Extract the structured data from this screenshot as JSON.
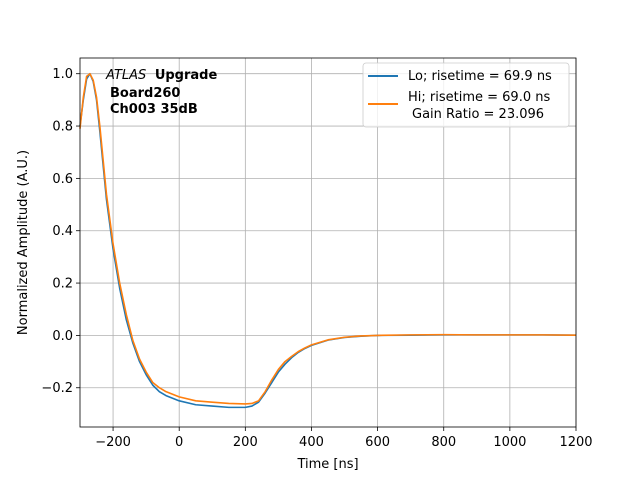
{
  "chart_data": {
    "type": "line",
    "xlabel": "Time [ns]",
    "ylabel": "Normalized Amplitude (A.U.)",
    "xlim": [
      -300,
      1200
    ],
    "ylim": [
      -0.35,
      1.06
    ],
    "xticks": [
      -200,
      0,
      200,
      400,
      600,
      800,
      1000,
      1200
    ],
    "xtick_labels": [
      "−200",
      "0",
      "200",
      "400",
      "600",
      "800",
      "1000",
      "1200"
    ],
    "yticks": [
      -0.2,
      0.0,
      0.2,
      0.4,
      0.6,
      0.8,
      1.0
    ],
    "ytick_labels": [
      "−0.2",
      "0.0",
      "0.2",
      "0.4",
      "0.6",
      "0.8",
      "1.0"
    ],
    "grid": true,
    "legend_position": "top-right",
    "annotation": {
      "experiment": "ATLAS",
      "tag": "Upgrade",
      "line2": "Board260",
      "line3": "Ch003 35dB"
    },
    "series": [
      {
        "name": "Lo; risetime = 69.9 ns",
        "color": "#1f77b4",
        "x": [
          -300,
          -290,
          -280,
          -270,
          -260,
          -250,
          -240,
          -230,
          -220,
          -200,
          -180,
          -160,
          -140,
          -120,
          -100,
          -80,
          -60,
          -40,
          -20,
          0,
          50,
          100,
          150,
          200,
          220,
          240,
          260,
          280,
          300,
          320,
          340,
          360,
          380,
          400,
          450,
          500,
          550,
          600,
          700,
          800,
          900,
          1000,
          1100,
          1200
        ],
        "y": [
          0.8,
          0.9,
          0.98,
          1.0,
          0.97,
          0.9,
          0.78,
          0.65,
          0.52,
          0.33,
          0.18,
          0.06,
          -0.03,
          -0.1,
          -0.15,
          -0.19,
          -0.215,
          -0.23,
          -0.24,
          -0.25,
          -0.265,
          -0.27,
          -0.275,
          -0.275,
          -0.27,
          -0.255,
          -0.22,
          -0.18,
          -0.14,
          -0.11,
          -0.085,
          -0.065,
          -0.05,
          -0.038,
          -0.018,
          -0.008,
          -0.003,
          0.0,
          0.001,
          0.002,
          0.002,
          0.002,
          0.002,
          0.001
        ]
      },
      {
        "name": "Hi; risetime = 69.0 ns",
        "name_line2": "Gain Ratio = 23.096",
        "color": "#ff7f0e",
        "x": [
          -300,
          -290,
          -280,
          -270,
          -260,
          -250,
          -240,
          -230,
          -220,
          -200,
          -180,
          -160,
          -140,
          -120,
          -100,
          -80,
          -60,
          -40,
          -20,
          0,
          50,
          100,
          150,
          200,
          220,
          240,
          260,
          280,
          300,
          320,
          340,
          360,
          380,
          400,
          450,
          500,
          550,
          600,
          700,
          800,
          900,
          1000,
          1100,
          1200
        ],
        "y": [
          0.79,
          0.91,
          0.99,
          1.0,
          0.975,
          0.91,
          0.8,
          0.67,
          0.54,
          0.35,
          0.2,
          0.08,
          -0.02,
          -0.09,
          -0.14,
          -0.18,
          -0.2,
          -0.215,
          -0.225,
          -0.235,
          -0.25,
          -0.255,
          -0.26,
          -0.262,
          -0.26,
          -0.25,
          -0.215,
          -0.17,
          -0.13,
          -0.1,
          -0.08,
          -0.062,
          -0.048,
          -0.036,
          -0.017,
          -0.007,
          -0.002,
          0.0,
          0.002,
          0.003,
          0.002,
          0.002,
          0.002,
          0.001
        ]
      }
    ]
  }
}
